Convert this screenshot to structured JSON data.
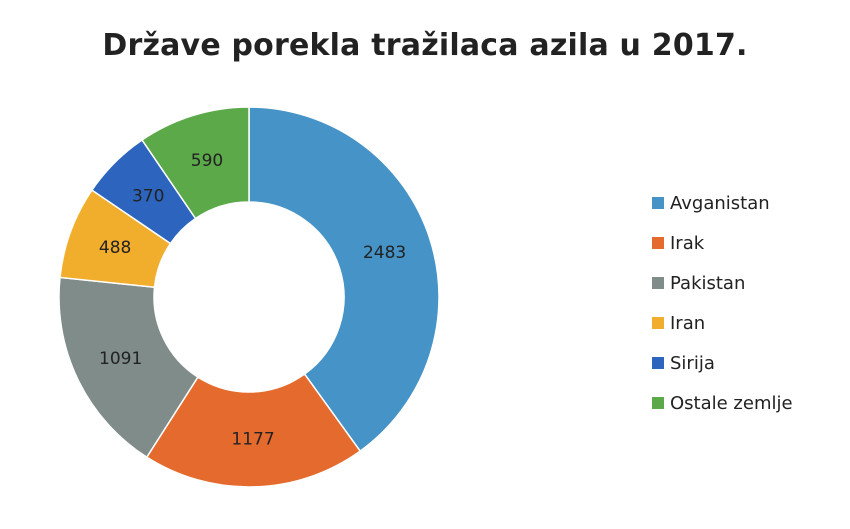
{
  "chart_data": {
    "type": "pie",
    "donut": true,
    "title": "Države porekla tražilaca azila u 2017.",
    "legend_position": "right",
    "series": [
      {
        "name": "Avganistan",
        "value": 2483,
        "color": "#4593C7"
      },
      {
        "name": "Irak",
        "value": 1177,
        "color": "#E46B2D"
      },
      {
        "name": "Pakistan",
        "value": 1091,
        "color": "#7F8C8A"
      },
      {
        "name": "Iran",
        "value": 488,
        "color": "#F1AE2D"
      },
      {
        "name": "Sirija",
        "value": 370,
        "color": "#2D65BE"
      },
      {
        "name": "Ostale zemlje",
        "value": 590,
        "color": "#5CA94A"
      }
    ]
  }
}
